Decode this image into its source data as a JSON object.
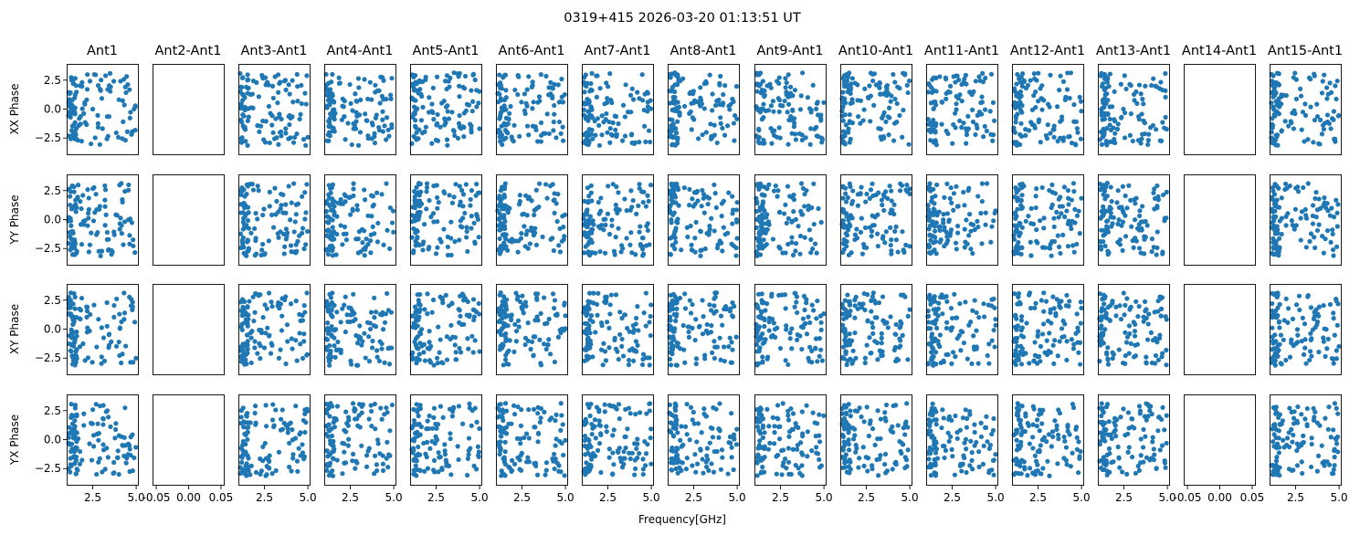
{
  "chart_data": {
    "type": "scatter",
    "title": "0319+415 2026-03-20 01:13:51 UT",
    "xlabel": "Frequency[GHz]",
    "columns": [
      "Ant1",
      "Ant2-Ant1",
      "Ant3-Ant1",
      "Ant4-Ant1",
      "Ant5-Ant1",
      "Ant6-Ant1",
      "Ant7-Ant1",
      "Ant8-Ant1",
      "Ant9-Ant1",
      "Ant10-Ant1",
      "Ant11-Ant1",
      "Ant12-Ant1",
      "Ant13-Ant1",
      "Ant14-Ant1",
      "Ant15-Ant1"
    ],
    "rows": [
      "XX Phase",
      "YY Phase",
      "XY Phase",
      "YX Phase"
    ],
    "empty_columns": [
      1,
      13
    ],
    "xlim": [
      1.0,
      5.1
    ],
    "ylim": [
      -3.9,
      3.9
    ],
    "xticks": [
      2.5,
      5.0
    ],
    "xtick_labels": [
      "2.5",
      "5.0"
    ],
    "empty_xticks": [
      -0.05,
      0.0,
      0.05
    ],
    "empty_xtick_labels": [
      "-0.05",
      "0.00",
      "0.05"
    ],
    "yticks": [
      2.5,
      0.0,
      -2.5
    ],
    "ytick_labels": [
      "2.5",
      "0.0",
      "−2.5"
    ],
    "frequency_range": [
      1.1,
      5.0
    ],
    "phase_range": [
      -3.14,
      3.14
    ],
    "points_per_panel": 120,
    "marker_color": "#1f77b4",
    "grid": false,
    "legend": "none"
  }
}
